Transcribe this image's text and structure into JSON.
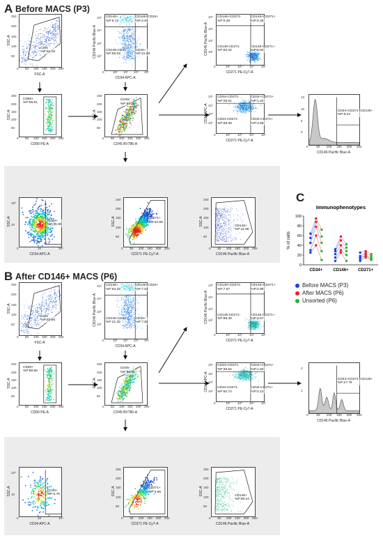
{
  "panels": {
    "A": {
      "letter": "A",
      "title": "Before MACS (P3)"
    },
    "B": {
      "letter": "B",
      "title": "After CD146+ MACS (P6)"
    },
    "C": {
      "letter": "C",
      "title": "Immunophenotypes"
    }
  },
  "plots": {
    "a_fsc": {
      "x": "FSC-A",
      "y": "SSC-A",
      "ann": [
        "Cells",
        "%P:61.18"
      ]
    },
    "a_cd90": {
      "x": "CD90 PE-A",
      "y": "SSC-A",
      "ann": [
        "CD90+",
        "%P:99.91"
      ]
    },
    "a_cd146cd34": {
      "x": "CD34 APC-A",
      "y": "CD146 Pacific Blue-A",
      "ann": [
        "CD146+",
        "%P:8.13"
      ],
      "ann2": [
        "CD146+CD34+",
        "%P:2.81"
      ],
      "ann3": [
        "CD146-CD34-",
        "%P:69.03"
      ],
      "ann4": [
        "CD34+",
        "%P:31.03"
      ]
    },
    "a_cd45": {
      "x": "CD45 BV786-A",
      "y": "SSC-A",
      "ann": [
        "CD45-",
        "%P:97.3"
      ]
    },
    "a_cd146cd271": {
      "x": "CD271 PE-Cy7-A",
      "y": "CD146 Pacific Blue-A",
      "ann": [
        "CD146+CD271-",
        "%P:0.38"
      ],
      "ann2": [
        "CD146+CD271+",
        "%P:0.36"
      ],
      "ann3": [
        "CD146-CD271-",
        "%P:93.42"
      ],
      "ann4": [
        "CD146-CD271+",
        "%P:5.84"
      ]
    },
    "a_cd34cd271": {
      "x": "CD271 PE-Cy7-A",
      "y": "CD34 APC-A",
      "ann": [
        "CD34+CD271-",
        "%P:26.61"
      ],
      "ann2": [
        "CD34+CD271+",
        "%P:1.42"
      ],
      "ann3": [
        "CD34-CD271-",
        "%P:69.38"
      ],
      "ann4": [
        "CD34-CD271+",
        "%P:2.58"
      ]
    },
    "a_hist": {
      "x": "CD146 Pacific Blue-A",
      "y": "",
      "ann": [
        "CD34+CD271+CD146+",
        "%P:8.24"
      ]
    },
    "a_cd34": {
      "x": "CD34 APC-A",
      "y": "SSC-A",
      "ann": [
        "CD34+",
        "%P:31.90"
      ]
    },
    "a_cd271": {
      "x": "CD271 PE-Cy7-A",
      "y": "SSC-A",
      "ann": [
        "CD271+",
        "%P:23.99"
      ]
    },
    "a_cd146": {
      "x": "CD146 Pacific Blue-A",
      "y": "SSC-A",
      "ann": [
        "CD146+",
        "%P:11.99"
      ]
    },
    "b_fsc": {
      "x": "FSC-A",
      "y": "SSC-A",
      "ann": [
        "Cells",
        "%P:23.66"
      ]
    },
    "b_cd90": {
      "x": "CD90 PE-A",
      "y": "SSC-A",
      "ann": [
        "CD90+",
        "%P:99.66"
      ]
    },
    "b_cd146cd34": {
      "x": "CD34 APC-A",
      "y": "CD146 Pacific Blue-A",
      "ann": [
        "CD146+",
        "%P:63.33"
      ],
      "ann2": [
        "CD146+CD34+",
        "%P:7.53"
      ],
      "ann3": [
        "CD146-CD34-",
        "%P:21.32"
      ],
      "ann4": [
        "CD34+",
        "%P:7.82"
      ]
    },
    "b_cd45": {
      "x": "CD45 BV786-A",
      "y": "SSC-A",
      "ann": [
        "CD45-",
        "%P:98.45"
      ]
    },
    "b_cd146cd271": {
      "x": "CD271 PE-Cy7-A",
      "y": "CD146 Pacific Blue-A",
      "ann": [
        "CD146+CD271-",
        "%P:7.87"
      ],
      "ann2": [
        "CD146+CD271+",
        "%P:0.98"
      ],
      "ann3": [
        "CD146-CD271-",
        "%P:88.48"
      ],
      "ann4": [
        "CD146-CD271+",
        "%P:2.67"
      ]
    },
    "b_cd34cd271": {
      "x": "CD271 PE-Cy7-A",
      "y": "CD34 APC-A",
      "ann": [
        "CD34+CD271-",
        "%P:35.54"
      ],
      "ann2": [
        "CD34+CD271+",
        "%P:1.60"
      ],
      "ann3": [
        "CD34-CD271-",
        "%P:62.72"
      ],
      "ann4": [
        "CD34-CD271+",
        "%P:0.13"
      ]
    },
    "b_hist": {
      "x": "CD146 Pacific Blue-A",
      "y": "",
      "ann": [
        "CD34+CD271+CD146+",
        "%P:27.78"
      ]
    },
    "b_cd34": {
      "x": "CD34 APC-A",
      "y": "SSC-A",
      "ann": [
        "CD34+",
        "%P:5.75"
      ]
    },
    "b_cd271": {
      "x": "CD271 PE-Cy7-A",
      "y": "SSC-A",
      "ann": [
        "CD271+",
        "%P:3.65"
      ]
    },
    "b_cd146": {
      "x": "CD146 Pacific Blue-A",
      "y": "SSC-A",
      "ann": [
        "CD146+",
        "%P:68.24"
      ]
    }
  },
  "ticks": {
    "lin": [
      "0",
      "50",
      "100",
      "150",
      "200",
      "250"
    ],
    "linY": [
      "50",
      "100",
      "150",
      "200",
      "250"
    ],
    "log": [
      "0",
      "10²",
      "10³",
      "10⁴",
      "10⁵"
    ],
    "logA": [
      "0",
      "10",
      "10³"
    ],
    "histYA": [
      "3",
      "6",
      "10",
      "13"
    ],
    "histYB": [
      "1",
      "2"
    ]
  },
  "chart_data": {
    "type": "scatter",
    "title": "Immunophenotypes",
    "ylabel": "% of cells",
    "ylim": [
      0,
      100
    ],
    "yticks": [
      0,
      20,
      40,
      60,
      80,
      100
    ],
    "categories": [
      "CD34+",
      "CD146+",
      "CD271+"
    ],
    "series": [
      {
        "name": "Before MACS (P3)",
        "color": "#1f3fd6",
        "values": {
          "CD34+": [
            64,
            55,
            45,
            30,
            25
          ],
          "CD146+": [
            32,
            28,
            22,
            15,
            8
          ],
          "CD271+": [
            25,
            18,
            15,
            12,
            8
          ]
        }
      },
      {
        "name": "After MACS (P6)",
        "color": "#e8202a",
        "values": {
          "CD34+": [
            95,
            88,
            78,
            60,
            40
          ],
          "CD146+": [
            58,
            50,
            40,
            30,
            25
          ],
          "CD271+": [
            28,
            24,
            20,
            18,
            15
          ]
        }
      },
      {
        "name": "Unsorted (P6)",
        "color": "#22b33a",
        "values": {
          "CD34+": [
            72,
            58,
            45,
            28,
            10
          ],
          "CD146+": [
            42,
            35,
            28,
            20,
            8
          ],
          "CD271+": [
            22,
            18,
            14,
            12,
            10
          ]
        }
      }
    ],
    "pairs": [
      {
        "cat": "CD34+",
        "from": [
          64,
          55,
          45,
          30,
          25
        ],
        "to": [
          95,
          88,
          78,
          60,
          40
        ],
        "to2": [
          72,
          58,
          45,
          28,
          10
        ]
      },
      {
        "cat": "CD146+",
        "from": [
          32,
          28,
          22,
          15,
          8
        ],
        "to": [
          58,
          50,
          40,
          30,
          25
        ],
        "to2": [
          42,
          35,
          28,
          20,
          8
        ]
      },
      {
        "cat": "CD271+",
        "from": [
          25,
          18,
          15,
          12,
          8
        ],
        "to": [
          28,
          24,
          20,
          18,
          15
        ],
        "to2": [
          22,
          18,
          14,
          12,
          10
        ]
      }
    ],
    "legend_position": "bottom"
  }
}
